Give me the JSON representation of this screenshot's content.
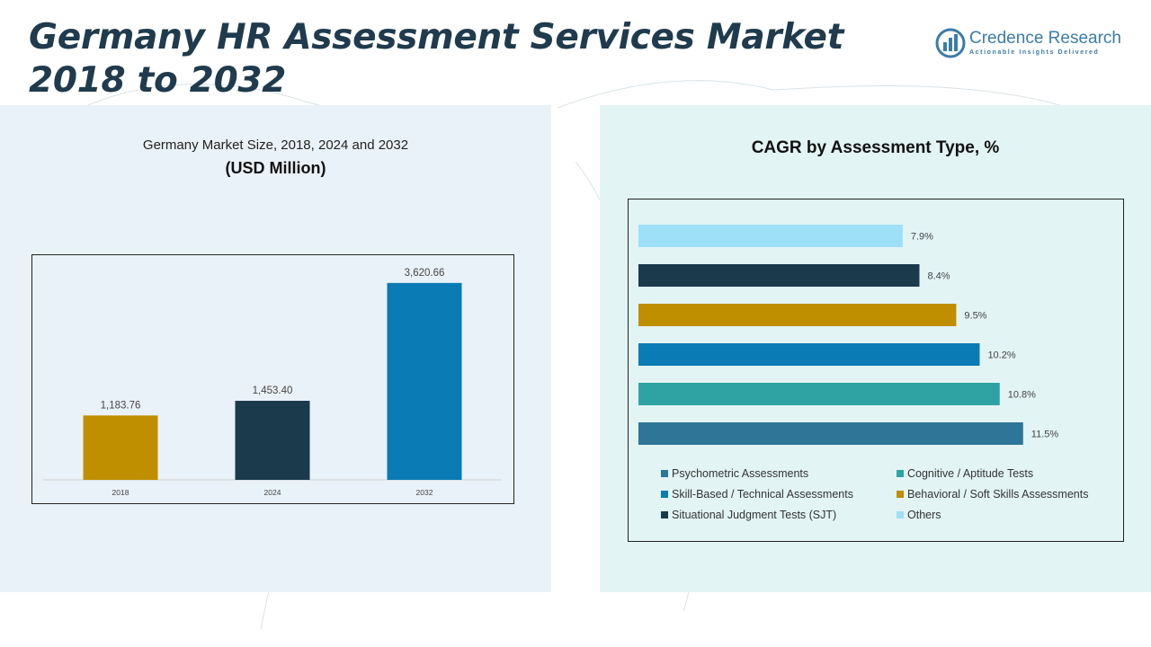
{
  "title": "Germany HR Assessment Services Market 2018 to 2032",
  "logo": {
    "name": "Credence Research",
    "tagline": "Actionable Insights Delivered"
  },
  "colors": {
    "title": "#1f3b4d",
    "gold": "#bf8f00",
    "navy": "#1b3a4b",
    "blue": "#0a7bb5",
    "teal": "#2fa3a3",
    "steel": "#2f7597",
    "light_blue": "#9ee0f7"
  },
  "left_chart": {
    "subtitle": "Germany Market Size, 2018, 2024 and 2032",
    "unit": "(USD Million)"
  },
  "right_chart": {
    "title": "CAGR by Assessment Type, %"
  },
  "chart_data": [
    {
      "type": "bar",
      "title": "Germany Market Size, 2018, 2024 and 2032",
      "ylabel": "(USD Million)",
      "categories": [
        "2018",
        "2024",
        "2032"
      ],
      "values": [
        1183.76,
        1453.4,
        3620.66
      ],
      "value_labels": [
        "1,183.76",
        "1,453.40",
        "3,620.66"
      ],
      "colors": [
        "#bf8f00",
        "#1b3a4b",
        "#0a7bb5"
      ],
      "ylim": [
        0,
        3800
      ],
      "grid": false
    },
    {
      "type": "bar",
      "orientation": "horizontal",
      "title": "CAGR by Assessment Type, %",
      "categories": [
        "Others",
        "Situational Judgment Tests (SJT)",
        "Behavioral / Soft Skills Assessments",
        "Skill-Based / Technical Assessments",
        "Cognitive / Aptitude Tests",
        "Psychometric Assessments"
      ],
      "values": [
        7.9,
        8.4,
        9.5,
        10.2,
        10.8,
        11.5
      ],
      "value_labels": [
        "7.9%",
        "8.4%",
        "9.5%",
        "10.2%",
        "10.8%",
        "11.5%"
      ],
      "colors": [
        "#9ee0f7",
        "#1b3a4b",
        "#bf8f00",
        "#0a7bb5",
        "#2fa3a3",
        "#2f7597"
      ],
      "xlim": [
        0,
        12.5
      ],
      "grid": false,
      "legend": {
        "position": "bottom",
        "entries": [
          {
            "label": "Psychometric Assessments",
            "color": "#2f7597"
          },
          {
            "label": "Cognitive / Aptitude Tests",
            "color": "#2fa3a3"
          },
          {
            "label": "Skill-Based / Technical Assessments",
            "color": "#0a7bb5"
          },
          {
            "label": "Behavioral / Soft Skills Assessments",
            "color": "#bf8f00"
          },
          {
            "label": "Situational Judgment Tests (SJT)",
            "color": "#1b3a4b"
          },
          {
            "label": "Others",
            "color": "#9ee0f7"
          }
        ]
      }
    }
  ]
}
